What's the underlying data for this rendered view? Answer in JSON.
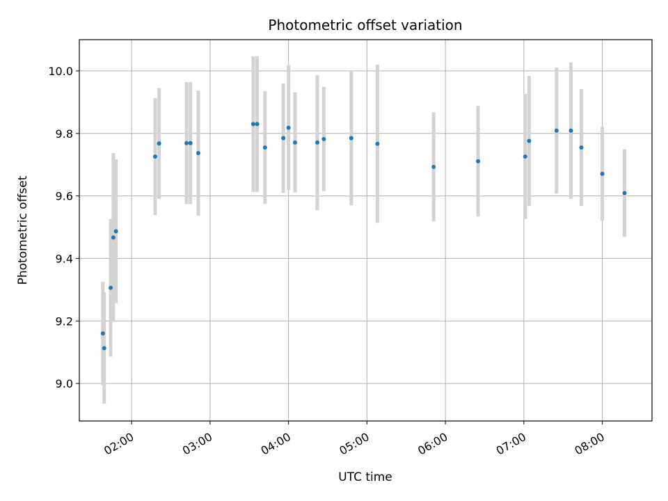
{
  "chart_data": {
    "type": "scatter",
    "title": "Photometric offset variation",
    "xlabel": "UTC time",
    "ylabel": "Photometric offset",
    "x_tick_labels": [
      "02:00",
      "03:00",
      "04:00",
      "05:00",
      "06:00",
      "07:00",
      "08:00"
    ],
    "x_ticks": [
      "02:00",
      "03:00",
      "04:00",
      "05:00",
      "06:00",
      "07:00",
      "08:00"
    ],
    "xlim": [
      "01:20",
      "08:38"
    ],
    "y_ticks": [
      9.0,
      9.2,
      9.4,
      9.6,
      9.8,
      10.0
    ],
    "y_tick_labels": [
      "9.0",
      "9.2",
      "9.4",
      "9.6",
      "9.8",
      "10.0"
    ],
    "ylim": [
      8.88,
      10.1
    ],
    "grid": true,
    "error_bar_color": "#d3d3d3",
    "marker_color": "#1f77b4",
    "points": [
      {
        "x": "01:38",
        "y": 9.16,
        "err": 0.165
      },
      {
        "x": "01:39",
        "y": 9.113,
        "err": 0.178
      },
      {
        "x": "01:44",
        "y": 9.306,
        "err": 0.22
      },
      {
        "x": "01:46",
        "y": 9.467,
        "err": 0.27
      },
      {
        "x": "01:48",
        "y": 9.487,
        "err": 0.23
      },
      {
        "x": "02:18",
        "y": 9.726,
        "err": 0.187
      },
      {
        "x": "02:21",
        "y": 9.768,
        "err": 0.177
      },
      {
        "x": "02:42",
        "y": 9.769,
        "err": 0.195
      },
      {
        "x": "02:45",
        "y": 9.769,
        "err": 0.195
      },
      {
        "x": "02:51",
        "y": 9.737,
        "err": 0.2
      },
      {
        "x": "03:33",
        "y": 9.83,
        "err": 0.217
      },
      {
        "x": "03:36",
        "y": 9.83,
        "err": 0.217
      },
      {
        "x": "03:42",
        "y": 9.755,
        "err": 0.18
      },
      {
        "x": "03:56",
        "y": 9.785,
        "err": 0.175
      },
      {
        "x": "04:00",
        "y": 9.818,
        "err": 0.2
      },
      {
        "x": "04:05",
        "y": 9.771,
        "err": 0.16
      },
      {
        "x": "04:22",
        "y": 9.771,
        "err": 0.216
      },
      {
        "x": "04:27",
        "y": 9.782,
        "err": 0.167
      },
      {
        "x": "04:48",
        "y": 9.785,
        "err": 0.215
      },
      {
        "x": "05:08",
        "y": 9.767,
        "err": 0.253
      },
      {
        "x": "05:51",
        "y": 9.693,
        "err": 0.175
      },
      {
        "x": "06:25",
        "y": 9.711,
        "err": 0.177
      },
      {
        "x": "07:01",
        "y": 9.726,
        "err": 0.2
      },
      {
        "x": "07:04",
        "y": 9.776,
        "err": 0.208
      },
      {
        "x": "07:25",
        "y": 9.809,
        "err": 0.202
      },
      {
        "x": "07:36",
        "y": 9.809,
        "err": 0.218
      },
      {
        "x": "07:44",
        "y": 9.755,
        "err": 0.187
      },
      {
        "x": "08:00",
        "y": 9.671,
        "err": 0.15
      },
      {
        "x": "08:17",
        "y": 9.609,
        "err": 0.14
      }
    ]
  }
}
